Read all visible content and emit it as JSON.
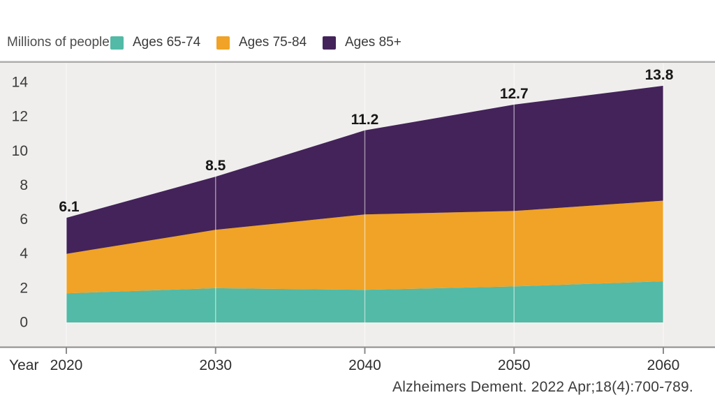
{
  "legend": {
    "units_label": "Millions of people"
  },
  "chart_data": {
    "type": "area",
    "stacked": true,
    "x": [
      2020,
      2030,
      2040,
      2050,
      2060
    ],
    "series": [
      {
        "name": "Ages 65-74",
        "color": "#52BAA6",
        "values": [
          1.7,
          2.0,
          1.9,
          2.1,
          2.4
        ]
      },
      {
        "name": "Ages 75-84",
        "color": "#F0A326",
        "values": [
          2.3,
          3.4,
          4.4,
          4.4,
          4.7
        ]
      },
      {
        "name": "Ages 85+",
        "color": "#432359",
        "values": [
          2.1,
          3.1,
          4.9,
          6.2,
          6.7
        ]
      }
    ],
    "totals": [
      6.1,
      8.5,
      11.2,
      12.7,
      13.8
    ],
    "total_labels": [
      "6.1",
      "8.5",
      "11.2",
      "12.7",
      "13.8"
    ],
    "x_tick_labels": [
      "2020",
      "2030",
      "2040",
      "2050",
      "2060"
    ],
    "y_ticks": [
      0,
      2,
      4,
      6,
      8,
      10,
      12,
      14
    ],
    "ylim": [
      0,
      14
    ],
    "xlabel": "Year",
    "ylabel": "Millions of people",
    "legend_position": "top",
    "grid": "vertical-white-lines"
  },
  "colors": {
    "series_65_74": "#52BAA6",
    "series_75_84": "#F0A326",
    "series_85_plus": "#432359",
    "plot_background": "#EFEEEC",
    "plot_top_border": "#AFADAB",
    "axis_line": "#8D8B89",
    "tick_text": "#3B3B3B",
    "data_label_text": "#171717",
    "gridline": "rgba(255,255,255,0.5)"
  },
  "citation": "Alzheimers Dement. 2022 Apr;18(4):700-789."
}
